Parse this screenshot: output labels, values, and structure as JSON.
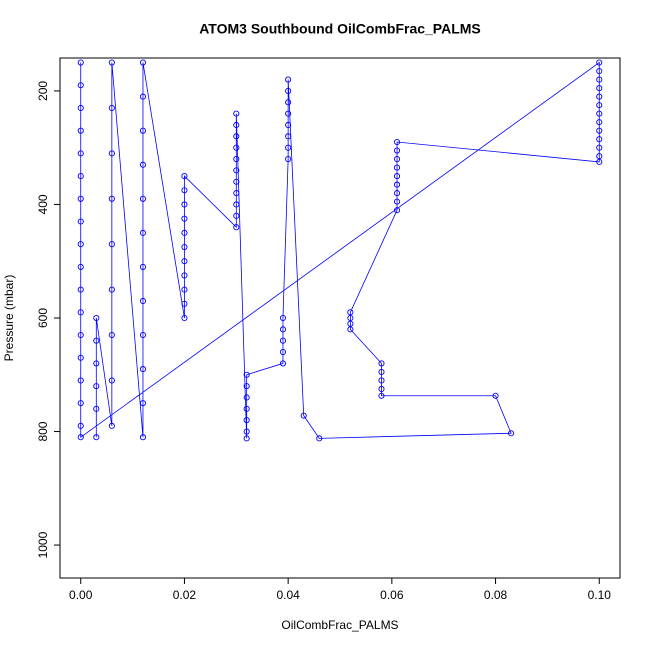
{
  "chart_data": {
    "type": "scatter",
    "title": "ATOM3 Southbound OilCombFrac_PALMS",
    "x_label": "OilCombFrac_PALMS",
    "y_label": "Pressure (mbar)",
    "xlim": [
      -0.004,
      0.104
    ],
    "ylim": [
      1058,
      142
    ],
    "y_reversed": true,
    "xticks": [
      {
        "value": 0,
        "label": "0.00"
      },
      {
        "value": 0.02,
        "label": "0.02"
      },
      {
        "value": 0.04,
        "label": "0.04"
      },
      {
        "value": 0.06,
        "label": "0.06"
      },
      {
        "value": 0.08,
        "label": "0.08"
      },
      {
        "value": 0.1,
        "label": "0.10"
      }
    ],
    "yticks": [
      200,
      400,
      600,
      800,
      1000
    ],
    "lines": true,
    "grid": false,
    "series": [
      {
        "color": "#0000ff",
        "x": [
          0,
          0,
          0,
          0,
          0,
          0,
          0,
          0,
          0,
          0,
          0,
          0,
          0,
          0,
          0,
          0,
          0,
          0,
          0.1,
          0.1,
          0.1,
          0.1,
          0.1,
          0.1,
          0.1,
          0.1,
          0.1,
          0.1,
          0.1,
          0.1,
          0.1,
          0.061,
          0.061,
          0.061,
          0.061,
          0.061,
          0.061,
          0.061,
          0.061,
          0.061,
          0.052,
          0.052,
          0.052,
          0.052,
          0.058,
          0.058,
          0.058,
          0.058,
          0.058,
          0.08,
          0.083,
          0.046,
          0.043,
          0.04,
          0.04,
          0.04,
          0.04,
          0.04,
          0.04,
          0.04,
          0.04,
          0.039,
          0.039,
          0.039,
          0.039,
          0.039,
          0.032,
          0.032,
          0.032,
          0.032,
          0.032,
          0.032,
          0.032,
          0.03,
          0.03,
          0.03,
          0.03,
          0.03,
          0.03,
          0.03,
          0.03,
          0.03,
          0.03,
          0.03,
          0.02,
          0.02,
          0.02,
          0.02,
          0.02,
          0.02,
          0.02,
          0.02,
          0.02,
          0.02,
          0.02,
          0.012,
          0.012,
          0.012,
          0.012,
          0.012,
          0.012,
          0.012,
          0.012,
          0.012,
          0.012,
          0.012,
          0.012,
          0.006,
          0.006,
          0.006,
          0.006,
          0.006,
          0.006,
          0.006,
          0.006,
          0.006,
          0.003,
          0.003,
          0.003,
          0.003,
          0.003,
          0.003
        ],
        "values": [
          150,
          190,
          230,
          270,
          310,
          350,
          390,
          430,
          470,
          510,
          550,
          590,
          630,
          670,
          710,
          750,
          790,
          810,
          150,
          165,
          180,
          195,
          210,
          225,
          240,
          255,
          270,
          285,
          300,
          315,
          325,
          290,
          305,
          320,
          335,
          350,
          365,
          380,
          395,
          410,
          590,
          600,
          610,
          620,
          680,
          695,
          710,
          725,
          737,
          737,
          803,
          812,
          772,
          180,
          200,
          220,
          240,
          260,
          280,
          300,
          320,
          600,
          620,
          640,
          660,
          680,
          700,
          720,
          740,
          760,
          780,
          800,
          812,
          240,
          260,
          280,
          300,
          320,
          340,
          360,
          380,
          400,
          420,
          440,
          350,
          375,
          400,
          425,
          450,
          475,
          500,
          525,
          550,
          575,
          600,
          150,
          210,
          270,
          330,
          390,
          450,
          510,
          570,
          630,
          690,
          750,
          810,
          150,
          230,
          310,
          390,
          470,
          550,
          630,
          710,
          790,
          600,
          640,
          680,
          720,
          760,
          810
        ]
      }
    ]
  }
}
